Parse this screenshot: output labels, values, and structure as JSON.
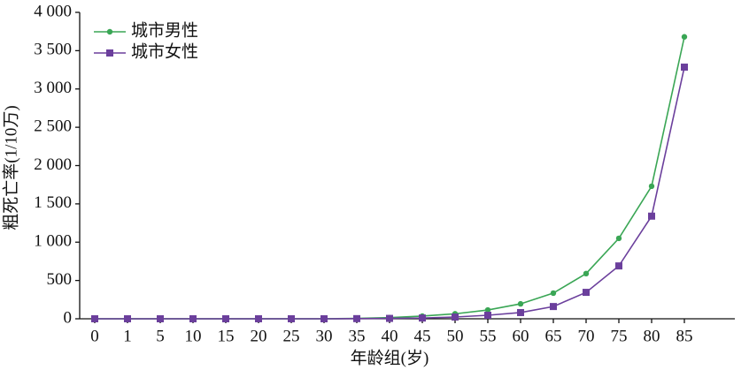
{
  "chart_data": {
    "type": "line",
    "y_label": "粗死亡率(1/10万)",
    "x_label": "年龄组(岁)",
    "categories": [
      "0",
      "1",
      "5",
      "10",
      "15",
      "20",
      "25",
      "30",
      "35",
      "40",
      "45",
      "50",
      "55",
      "60",
      "65",
      "70",
      "75",
      "80",
      "85"
    ],
    "series": [
      {
        "name": "城市男性",
        "color": "#3aa655",
        "marker": "circle",
        "values": [
          0,
          0,
          0,
          0,
          0,
          0,
          0,
          0,
          5,
          15,
          35,
          65,
          115,
          195,
          335,
          590,
          1050,
          1730,
          3680
        ]
      },
      {
        "name": "城市女性",
        "color": "#6b3f9c",
        "marker": "square",
        "values": [
          0,
          0,
          0,
          0,
          0,
          0,
          0,
          0,
          2,
          5,
          10,
          23,
          46,
          81,
          160,
          345,
          690,
          1340,
          3285
        ]
      }
    ],
    "ylim": [
      0,
      4000
    ],
    "yticks": [
      0,
      500,
      {
        "value": 1000,
        "label": "1 000"
      },
      {
        "value": 1500,
        "label": "1 500"
      },
      {
        "value": 2000,
        "label": "2 000"
      },
      {
        "value": 2500,
        "label": "2 500"
      },
      {
        "value": 3000,
        "label": "3 000"
      },
      {
        "value": 3500,
        "label": "3 500"
      },
      {
        "value": 4000,
        "label": "4 000"
      }
    ],
    "legend": "upper-left"
  }
}
